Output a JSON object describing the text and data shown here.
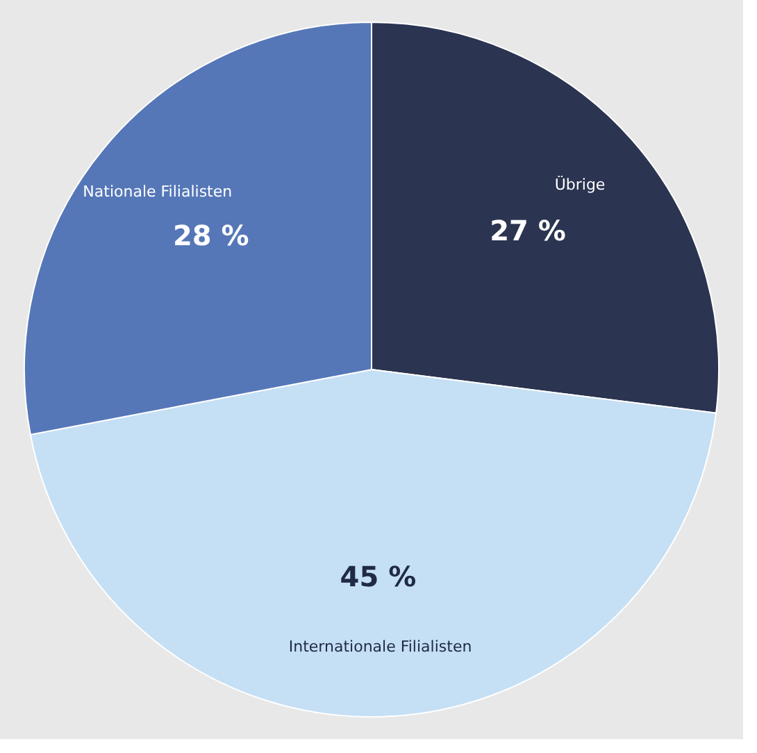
{
  "chart_data": {
    "type": "pie",
    "categories": [
      "Übrige",
      "Internationale Filialisten",
      "Nationale Filialisten"
    ],
    "values": [
      27,
      45,
      28
    ],
    "colors": [
      "#2b3450",
      "#c5dff5",
      "#5577b8"
    ],
    "value_labels": [
      "27 %",
      "45 %",
      "28 %"
    ],
    "legend": false
  }
}
